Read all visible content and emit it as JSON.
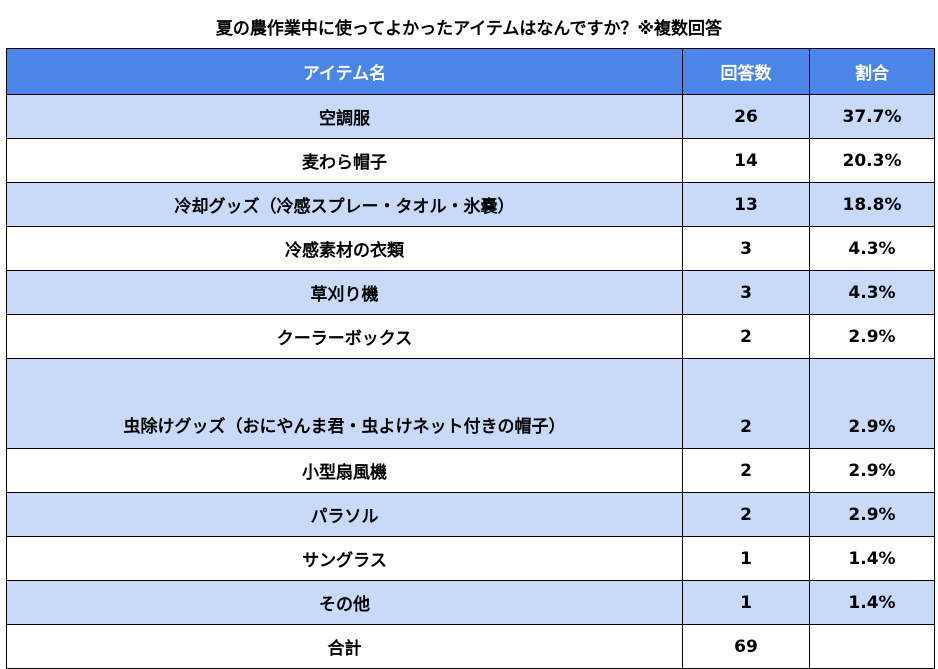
{
  "title": "夏の農作業中に使ってよかったアイテムはなんですか？※複数回答",
  "table": {
    "headers": {
      "item": "アイテム名",
      "count": "回答数",
      "percent": "割合"
    },
    "rows": [
      {
        "item": "空調服",
        "count": "26",
        "percent": "37.7%"
      },
      {
        "item": "麦わら帽子",
        "count": "14",
        "percent": "20.3%"
      },
      {
        "item": "冷却グッズ（冷感スプレー・タオル・氷嚢）",
        "count": "13",
        "percent": "18.8%"
      },
      {
        "item": "冷感素材の衣類",
        "count": "3",
        "percent": "4.3%"
      },
      {
        "item": "草刈り機",
        "count": "3",
        "percent": "4.3%"
      },
      {
        "item": "クーラーボックス",
        "count": "2",
        "percent": "2.9%"
      },
      {
        "item": "虫除けグッズ（おにやんま君・虫よけネット付きの帽子）",
        "count": "2",
        "percent": "2.9%"
      },
      {
        "item": "小型扇風機",
        "count": "2",
        "percent": "2.9%"
      },
      {
        "item": "パラソル",
        "count": "2",
        "percent": "2.9%"
      },
      {
        "item": "サングラス",
        "count": "1",
        "percent": "1.4%"
      },
      {
        "item": "その他",
        "count": "1",
        "percent": "1.4%"
      }
    ],
    "total": {
      "label": "合計",
      "count": "69",
      "percent": ""
    }
  },
  "colors": {
    "header_bg": "#4a86e8",
    "header_text": "#ffffff",
    "shaded_row_bg": "#c9daf8",
    "plain_row_bg": "#ffffff",
    "border": "#000000"
  }
}
